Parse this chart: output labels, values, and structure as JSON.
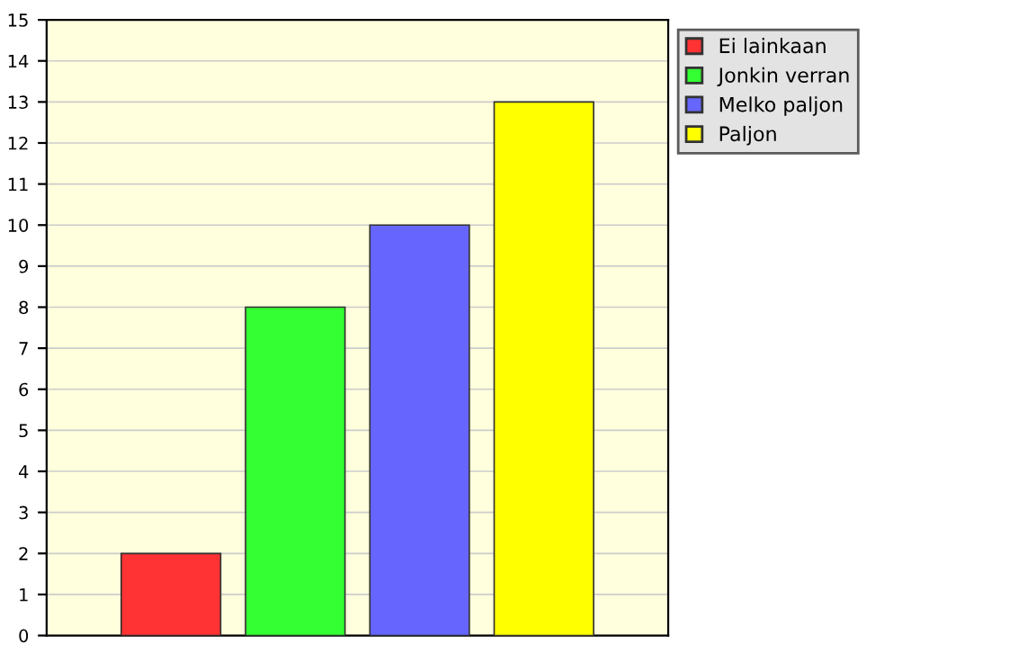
{
  "chart_data": {
    "type": "bar",
    "categories": [
      null,
      null,
      null,
      null
    ],
    "series": [
      {
        "name": "Ei lainkaan",
        "color": "#ff3333",
        "values": [
          2,
          null,
          null,
          null
        ]
      },
      {
        "name": "Jonkin verran",
        "color": "#33ff33",
        "values": [
          null,
          8,
          null,
          null
        ]
      },
      {
        "name": "Melko paljon",
        "color": "#6666ff",
        "values": [
          null,
          null,
          10,
          null
        ]
      },
      {
        "name": "Paljon",
        "color": "#ffff00",
        "values": [
          null,
          null,
          null,
          13
        ]
      }
    ],
    "ylim": [
      0,
      15
    ],
    "yticks": [
      0,
      1,
      2,
      3,
      4,
      5,
      6,
      7,
      8,
      9,
      10,
      11,
      12,
      13,
      14,
      15
    ],
    "grid": "y",
    "legend": "top right"
  }
}
